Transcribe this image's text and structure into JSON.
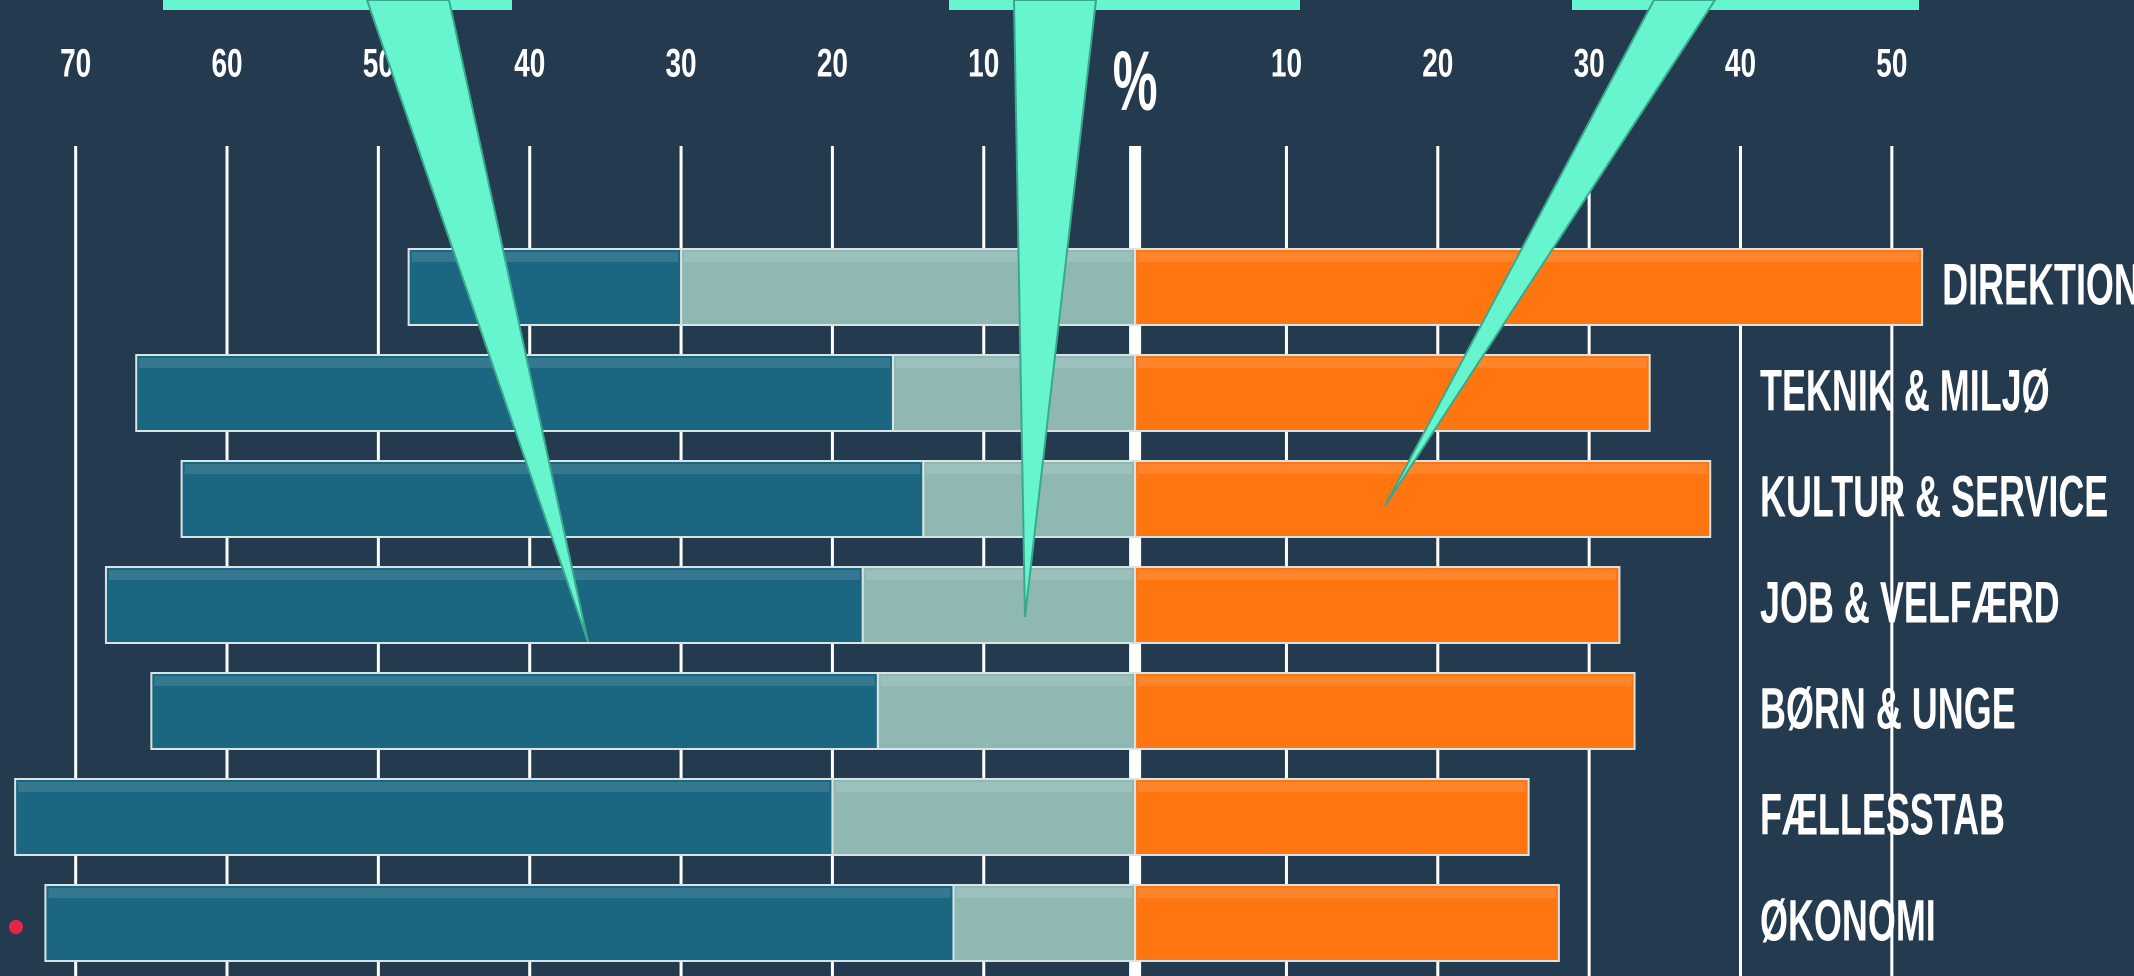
{
  "chart_data": {
    "type": "diverging-bar",
    "x_label": "%",
    "categories": [
      "DIREKTION",
      "TEKNIK & MILJØ",
      "KULTUR & SERVICE",
      "JOB & VELFÆRD",
      "BØRN & UNGE",
      "FÆLLESSTAB",
      "ØKONOMI"
    ],
    "series": [
      {
        "color": "#8fb8b3",
        "side": "left",
        "values": [
          30,
          16,
          14,
          18,
          17,
          20,
          12
        ]
      },
      {
        "color": "#1b6680",
        "side": "left",
        "values": [
          18,
          50,
          49,
          50,
          48,
          54,
          60
        ]
      },
      {
        "color": "#ff7510",
        "side": "right",
        "values": [
          52,
          34,
          38,
          32,
          33,
          26,
          28
        ]
      }
    ],
    "xlim": [
      -75,
      66
    ],
    "xticks": [
      {
        "value": -70,
        "label": "70"
      },
      {
        "value": -60,
        "label": "60"
      },
      {
        "value": -50,
        "label": "50"
      },
      {
        "value": -40,
        "label": "40"
      },
      {
        "value": -30,
        "label": "30"
      },
      {
        "value": -20,
        "label": "20"
      },
      {
        "value": -10,
        "label": "10"
      },
      10,
      20,
      30,
      40,
      50
    ],
    "grid": true
  }
}
